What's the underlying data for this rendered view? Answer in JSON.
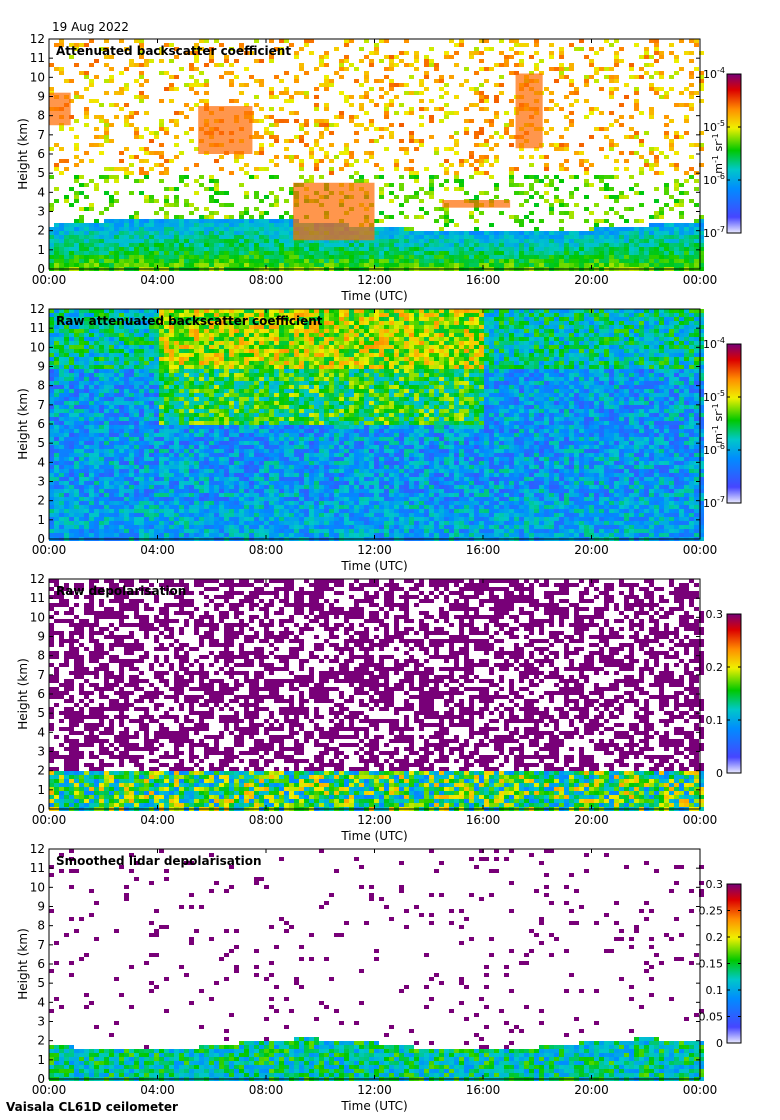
{
  "header": {
    "date": "19 Aug 2022"
  },
  "footer": {
    "instrument": "Vaisala CL61D ceilometer"
  },
  "chart_data": [
    {
      "type": "heatmap",
      "title": "Attenuated backscatter coefficient",
      "xlabel": "Time (UTC)",
      "ylabel": "Height (km)",
      "xticks": [
        "00:00",
        "04:00",
        "08:00",
        "12:00",
        "16:00",
        "20:00",
        "00:00"
      ],
      "yticks": [
        "0",
        "1",
        "2",
        "3",
        "4",
        "5",
        "6",
        "7",
        "8",
        "9",
        "10",
        "11",
        "12"
      ],
      "xlim": [
        0,
        24
      ],
      "ylim": [
        0,
        12
      ],
      "colorbar": {
        "scale": "log",
        "ticks": [
          "10-7",
          "10-6",
          "10-5",
          "10-4"
        ],
        "tick_exponents": [
          "-7",
          "-6",
          "-5",
          "-4"
        ],
        "unit": "m-1 sr-1"
      },
      "features": [
        {
          "kind": "boundary_layer",
          "height_km": [
            0,
            2.5
          ],
          "level": "high"
        },
        {
          "kind": "cloud",
          "time_h": [
            0,
            0.8
          ],
          "height_km": [
            7.5,
            9.2
          ]
        },
        {
          "kind": "cloud",
          "time_h": [
            5.5,
            7.5
          ],
          "height_km": [
            6.0,
            8.5
          ]
        },
        {
          "kind": "cloud",
          "time_h": [
            17.2,
            18.2
          ],
          "height_km": [
            6.3,
            10.2
          ]
        },
        {
          "kind": "cloud",
          "time_h": [
            9,
            12
          ],
          "height_km": [
            1.5,
            4.5
          ]
        },
        {
          "kind": "cloud",
          "time_h": [
            14.5,
            17
          ],
          "height_km": [
            3.2,
            3.6
          ]
        }
      ]
    },
    {
      "type": "heatmap",
      "title": "Raw attenuated backscatter coefficient",
      "xlabel": "Time (UTC)",
      "ylabel": "Height (km)",
      "xticks": [
        "00:00",
        "04:00",
        "08:00",
        "12:00",
        "16:00",
        "20:00",
        "00:00"
      ],
      "yticks": [
        "0",
        "1",
        "2",
        "3",
        "4",
        "5",
        "6",
        "7",
        "8",
        "9",
        "10",
        "11",
        "12"
      ],
      "xlim": [
        0,
        24
      ],
      "ylim": [
        0,
        12
      ],
      "colorbar": {
        "scale": "log",
        "ticks": [
          "10-7",
          "10-6",
          "10-5",
          "10-4"
        ],
        "tick_exponents": [
          "-7",
          "-6",
          "-5",
          "-4"
        ],
        "unit": "m-1 sr-1"
      }
    },
    {
      "type": "heatmap",
      "title": "Raw depolarisation",
      "xlabel": "Time (UTC)",
      "ylabel": "Height (km)",
      "xticks": [
        "00:00",
        "04:00",
        "08:00",
        "12:00",
        "16:00",
        "20:00",
        "00:00"
      ],
      "yticks": [
        "0",
        "1",
        "2",
        "3",
        "4",
        "5",
        "6",
        "7",
        "8",
        "9",
        "10",
        "11",
        "12"
      ],
      "xlim": [
        0,
        24
      ],
      "ylim": [
        0,
        12
      ],
      "colorbar": {
        "scale": "linear",
        "ticks": [
          "0",
          "0.1",
          "0.2",
          "0.3"
        ],
        "range": [
          0,
          0.3
        ]
      }
    },
    {
      "type": "heatmap",
      "title": "Smoothed lidar depolarisation",
      "xlabel": "Time (UTC)",
      "ylabel": "Height (km)",
      "xticks": [
        "00:00",
        "04:00",
        "08:00",
        "12:00",
        "16:00",
        "20:00",
        "00:00"
      ],
      "yticks": [
        "0",
        "1",
        "2",
        "3",
        "4",
        "5",
        "6",
        "7",
        "8",
        "9",
        "10",
        "11",
        "12"
      ],
      "xlim": [
        0,
        24
      ],
      "ylim": [
        0,
        12
      ],
      "colorbar": {
        "scale": "linear",
        "ticks": [
          "0",
          "0.05",
          "0.1",
          "0.15",
          "0.2",
          "0.25",
          "0.3"
        ],
        "range": [
          0,
          0.3
        ]
      }
    }
  ]
}
